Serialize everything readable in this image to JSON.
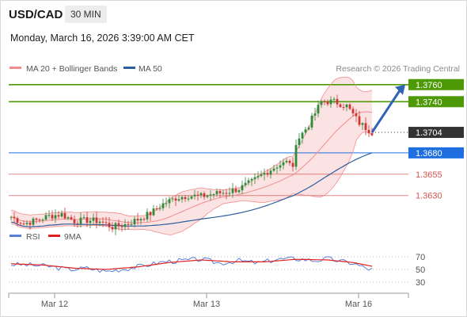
{
  "header": {
    "symbol": "USD/CAD",
    "timeframe": "30 MIN",
    "datetime": "Monday, March 16, 2026 3:39:00 AM CET"
  },
  "colors": {
    "bollinger": "#f28c8c",
    "ma50": "#2c5f9e",
    "up": "#2e8b3a",
    "down": "#d03535",
    "target": "#4e9a06",
    "current": "#333333",
    "pivot": "#1f6fe0",
    "support": "#d9534f",
    "arrow": "#2e63b5",
    "rsi": "#5b7fd6",
    "rsi_ma": "#e02020"
  },
  "chart_data": [
    {
      "type": "candlestick",
      "legend": [
        {
          "name": "MA 20 + Bollinger Bands",
          "color": "#f28c8c"
        },
        {
          "name": "MA 50",
          "color": "#2c5f9e"
        }
      ],
      "attribution": "Research © 2026 Trading Central",
      "x_ticks": [
        {
          "label": "Mar 12",
          "index": 14
        },
        {
          "label": "Mar 13",
          "index": 62
        },
        {
          "label": "Mar 16",
          "index": 110
        }
      ],
      "y_range": [
        1.36,
        1.377
      ],
      "levels": [
        {
          "value": 1.376,
          "label": "1.3760",
          "kind": "target"
        },
        {
          "value": 1.374,
          "label": "1.3740",
          "kind": "target"
        },
        {
          "value": 1.3704,
          "label": "1.3704",
          "kind": "current"
        },
        {
          "value": 1.368,
          "label": "1.3680",
          "kind": "pivot"
        },
        {
          "value": 1.3655,
          "label": "1.3655",
          "kind": "support"
        },
        {
          "value": 1.363,
          "label": "1.3630",
          "kind": "support"
        }
      ],
      "arrow": {
        "from_index": 114,
        "from_value": 1.3704,
        "to_index": 124,
        "to_value": 1.376
      },
      "close_anchors": [
        [
          0,
          1.3605
        ],
        [
          4,
          1.3597
        ],
        [
          8,
          1.3601
        ],
        [
          12,
          1.3606
        ],
        [
          16,
          1.3608
        ],
        [
          20,
          1.36
        ],
        [
          24,
          1.3601
        ],
        [
          28,
          1.36
        ],
        [
          32,
          1.3593
        ],
        [
          36,
          1.3596
        ],
        [
          40,
          1.3602
        ],
        [
          44,
          1.3609
        ],
        [
          48,
          1.362
        ],
        [
          52,
          1.3627
        ],
        [
          56,
          1.363
        ],
        [
          60,
          1.3629
        ],
        [
          64,
          1.3632
        ],
        [
          68,
          1.3634
        ],
        [
          72,
          1.3638
        ],
        [
          76,
          1.3646
        ],
        [
          80,
          1.3656
        ],
        [
          84,
          1.3665
        ],
        [
          88,
          1.367
        ],
        [
          89,
          1.366
        ],
        [
          90,
          1.3693
        ],
        [
          94,
          1.3713
        ],
        [
          98,
          1.374
        ],
        [
          102,
          1.374
        ],
        [
          106,
          1.3735
        ],
        [
          110,
          1.3715
        ],
        [
          114,
          1.3704
        ]
      ]
    },
    {
      "type": "line",
      "legend": [
        {
          "name": "RSI",
          "color": "#5b7fd6"
        },
        {
          "name": "9MA",
          "color": "#e02020"
        }
      ],
      "y_ticks": [
        {
          "label": "70",
          "value": 70
        },
        {
          "label": "50",
          "value": 50
        },
        {
          "label": "30",
          "value": 30
        }
      ],
      "y_range": [
        20,
        80
      ],
      "rsi_anchors": [
        [
          0,
          58
        ],
        [
          6,
          57
        ],
        [
          12,
          55
        ],
        [
          18,
          50
        ],
        [
          24,
          52
        ],
        [
          30,
          47
        ],
        [
          36,
          51
        ],
        [
          42,
          56
        ],
        [
          48,
          62
        ],
        [
          54,
          64
        ],
        [
          60,
          66
        ],
        [
          66,
          60
        ],
        [
          72,
          64
        ],
        [
          78,
          60
        ],
        [
          84,
          66
        ],
        [
          90,
          67
        ],
        [
          96,
          64
        ],
        [
          100,
          67
        ],
        [
          104,
          63
        ],
        [
          108,
          60
        ],
        [
          112,
          52
        ],
        [
          114,
          50
        ]
      ],
      "ma_anchors": [
        [
          0,
          59
        ],
        [
          10,
          57
        ],
        [
          20,
          52
        ],
        [
          30,
          50
        ],
        [
          40,
          54
        ],
        [
          50,
          61
        ],
        [
          60,
          65
        ],
        [
          70,
          62
        ],
        [
          80,
          62
        ],
        [
          90,
          66
        ],
        [
          100,
          65
        ],
        [
          108,
          61
        ],
        [
          114,
          55
        ]
      ]
    }
  ]
}
